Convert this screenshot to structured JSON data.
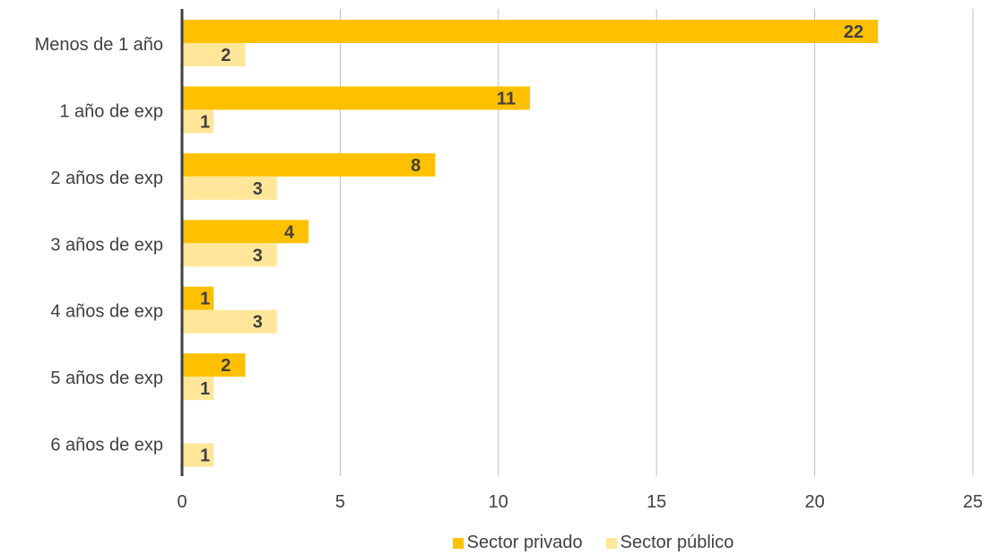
{
  "chart_data": {
    "type": "bar",
    "orientation": "horizontal",
    "categories": [
      "Menos de 1 año",
      "1 año de exp",
      "2 años de exp",
      "3 años de exp",
      "4 años de exp",
      "5 años de exp",
      "6 años de exp"
    ],
    "series": [
      {
        "name": "Sector privado",
        "color": "#FFC000",
        "values": [
          22,
          11,
          8,
          4,
          1,
          2,
          null
        ]
      },
      {
        "name": "Sector público",
        "color": "#FFE699",
        "values": [
          2,
          1,
          3,
          3,
          3,
          1,
          1
        ]
      }
    ],
    "xlim": [
      0,
      25
    ],
    "xticks": [
      0,
      5,
      10,
      15,
      20,
      25
    ],
    "grid": "vertical",
    "legend": "bottom",
    "data_labels": true,
    "title": "",
    "xlabel": "",
    "ylabel": ""
  }
}
